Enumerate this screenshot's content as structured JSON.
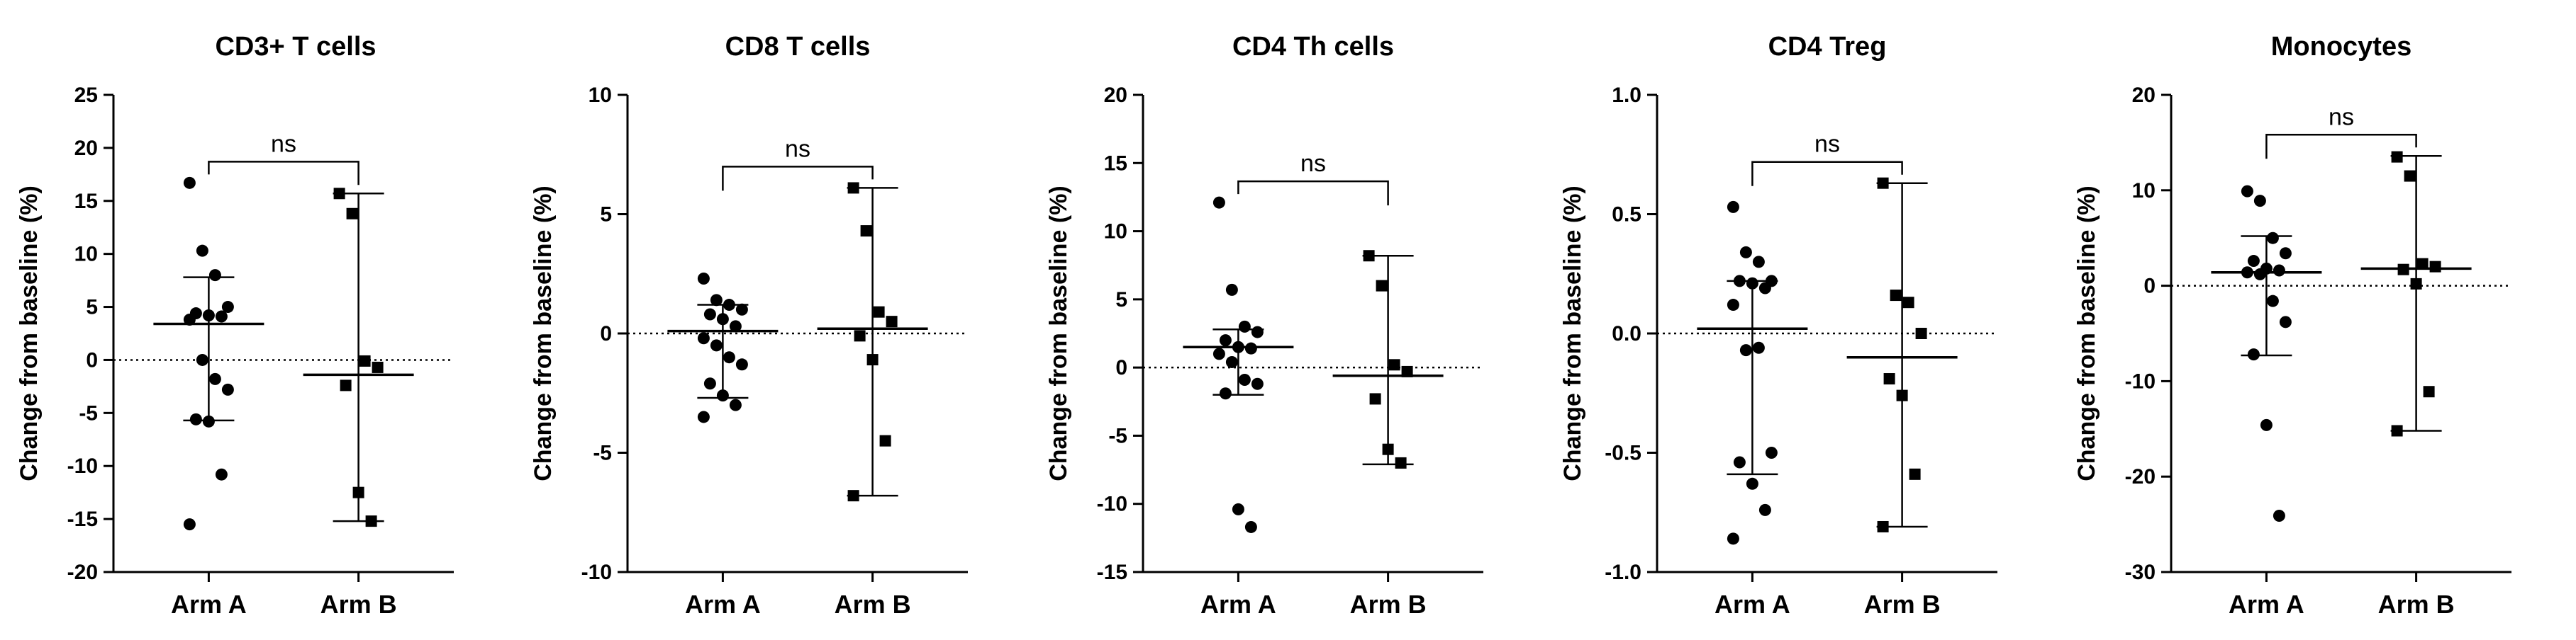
{
  "chart_data": [
    {
      "type": "scatter",
      "title": "CD3+ T cells",
      "xlabel": "",
      "ylabel": "Change from baseline (%)",
      "categories": [
        "Arm A",
        "Arm B"
      ],
      "ylim": [
        -20,
        25
      ],
      "yticks": [
        -20,
        -15,
        -10,
        -5,
        0,
        5,
        10,
        15,
        20,
        25
      ],
      "ytick_labels": [
        "-20",
        "-15",
        "-10",
        "-5",
        "0",
        "5",
        "10",
        "15",
        "20",
        "25"
      ],
      "reference_line": 0,
      "significance": "ns",
      "series": [
        {
          "name": "Arm A",
          "marker": "circle",
          "values": [
            16.7,
            10.3,
            8.0,
            5.0,
            4.4,
            4.2,
            4.1,
            3.8,
            0.0,
            -1.8,
            -2.8,
            -5.6,
            -5.8,
            -10.8,
            -15.5
          ],
          "median": 3.4,
          "error_low": -5.7,
          "error_high": 7.8
        },
        {
          "name": "Arm B",
          "marker": "square",
          "values": [
            15.7,
            13.8,
            -0.1,
            -0.7,
            -2.4,
            -12.5,
            -15.2
          ],
          "median": -1.4,
          "error_low": -15.2,
          "error_high": 15.7
        }
      ]
    },
    {
      "type": "scatter",
      "title": "CD8 T cells",
      "xlabel": "",
      "ylabel": "Change from baseline (%)",
      "categories": [
        "Arm A",
        "Arm B"
      ],
      "ylim": [
        -10,
        10
      ],
      "yticks": [
        -10,
        -5,
        0,
        5,
        10
      ],
      "ytick_labels": [
        "-10",
        "-5",
        "0",
        "5",
        "10"
      ],
      "reference_line": 0,
      "significance": "ns",
      "series": [
        {
          "name": "Arm A",
          "marker": "circle",
          "values": [
            2.3,
            1.4,
            1.2,
            1.0,
            0.8,
            0.6,
            0.3,
            -0.2,
            -0.5,
            -1.0,
            -1.3,
            -2.1,
            -2.6,
            -3.0,
            -3.5
          ],
          "median": 0.1,
          "error_low": -2.7,
          "error_high": 1.2
        },
        {
          "name": "Arm B",
          "marker": "square",
          "values": [
            6.1,
            4.3,
            0.9,
            0.5,
            -0.1,
            -1.1,
            -4.5,
            -6.8
          ],
          "median": 0.2,
          "error_low": -6.8,
          "error_high": 6.1
        }
      ]
    },
    {
      "type": "scatter",
      "title": "CD4 Th cells",
      "xlabel": "",
      "ylabel": "Change from baseline (%)",
      "categories": [
        "Arm A",
        "Arm B"
      ],
      "ylim": [
        -15,
        20
      ],
      "yticks": [
        -15,
        -10,
        -5,
        0,
        5,
        10,
        15,
        20
      ],
      "ytick_labels": [
        "-15",
        "-10",
        "-5",
        "0",
        "5",
        "10",
        "15",
        "20"
      ],
      "reference_line": 0,
      "significance": "ns",
      "series": [
        {
          "name": "Arm A",
          "marker": "circle",
          "values": [
            12.1,
            5.7,
            3.0,
            2.6,
            2.0,
            1.5,
            1.4,
            1.0,
            0.4,
            -0.9,
            -1.2,
            -1.9,
            -10.4,
            -11.7
          ],
          "median": 1.5,
          "error_low": -2.0,
          "error_high": 2.8
        },
        {
          "name": "Arm B",
          "marker": "square",
          "values": [
            8.2,
            6.0,
            0.2,
            -0.3,
            -2.3,
            -6.0,
            -7.0
          ],
          "median": -0.6,
          "error_low": -7.1,
          "error_high": 8.2
        }
      ]
    },
    {
      "type": "scatter",
      "title": "CD4 Treg",
      "xlabel": "",
      "ylabel": "Change from baseline (%)",
      "categories": [
        "Arm A",
        "Arm B"
      ],
      "ylim": [
        -1.0,
        1.0
      ],
      "yticks": [
        -1.0,
        -0.5,
        0.0,
        0.5,
        1.0
      ],
      "ytick_labels": [
        "-1.0",
        "-0.5",
        "0.0",
        "0.5",
        "1.0"
      ],
      "reference_line": 0,
      "significance": "ns",
      "series": [
        {
          "name": "Arm A",
          "marker": "circle",
          "values": [
            0.53,
            0.34,
            0.3,
            0.22,
            0.22,
            0.21,
            0.19,
            0.12,
            -0.07,
            -0.06,
            -0.5,
            -0.54,
            -0.63,
            -0.74,
            -0.86
          ],
          "median": 0.02,
          "error_low": -0.59,
          "error_high": 0.22
        },
        {
          "name": "Arm B",
          "marker": "square",
          "values": [
            0.63,
            0.16,
            0.13,
            0.0,
            -0.19,
            -0.26,
            -0.59,
            -0.81
          ],
          "median": -0.1,
          "error_low": -0.81,
          "error_high": 0.63
        }
      ]
    },
    {
      "type": "scatter",
      "title": "Monocytes",
      "xlabel": "",
      "ylabel": "Change from baseline (%)",
      "categories": [
        "Arm A",
        "Arm B"
      ],
      "ylim": [
        -30,
        20
      ],
      "yticks": [
        -30,
        -20,
        -10,
        0,
        10,
        20
      ],
      "ytick_labels": [
        "-30",
        "-20",
        "-10",
        "0",
        "10",
        "20"
      ],
      "reference_line": 0,
      "significance": "ns",
      "series": [
        {
          "name": "Arm A",
          "marker": "circle",
          "values": [
            9.9,
            8.9,
            5.0,
            3.4,
            2.6,
            1.8,
            1.6,
            1.4,
            1.2,
            -1.6,
            -3.8,
            -7.2,
            -14.6,
            -24.1
          ],
          "median": 1.4,
          "error_low": -7.3,
          "error_high": 5.2
        },
        {
          "name": "Arm B",
          "marker": "square",
          "values": [
            13.5,
            11.5,
            2.3,
            2.0,
            1.7,
            0.2,
            -11.1,
            -15.2
          ],
          "median": 1.8,
          "error_low": -15.2,
          "error_high": 13.6
        }
      ]
    }
  ]
}
